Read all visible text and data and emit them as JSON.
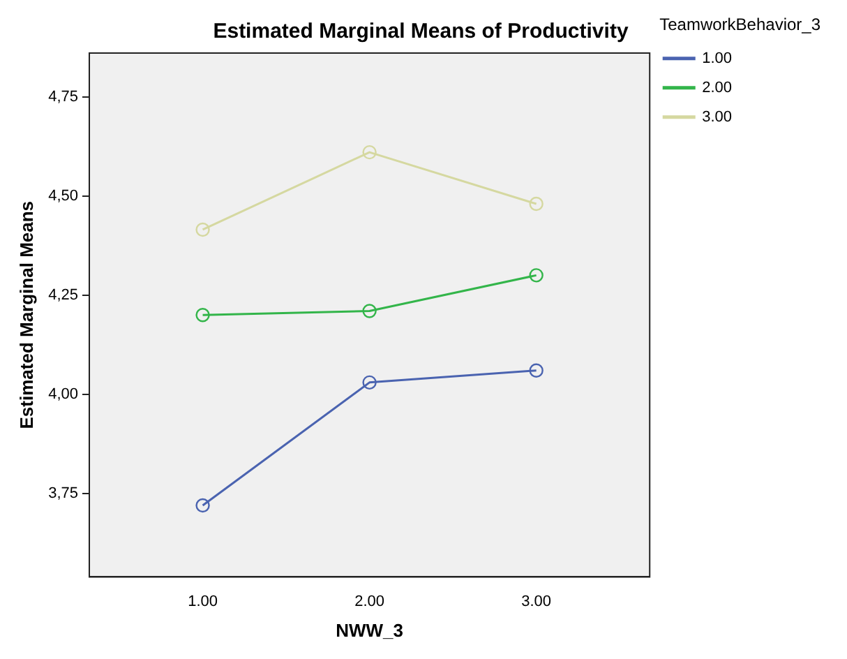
{
  "chart_data": {
    "type": "line",
    "title": "Estimated Marginal Means of Productivity",
    "xlabel": "NWW_3",
    "ylabel": "Estimated Marginal Means",
    "legend_title": "TeamworkBehavior_3",
    "x": [
      1,
      2,
      3
    ],
    "xlim": [
      0.32,
      3.68
    ],
    "xticks": [
      {
        "value": 1,
        "label": "1.00"
      },
      {
        "value": 2,
        "label": "2.00"
      },
      {
        "value": 3,
        "label": "3.00"
      }
    ],
    "ylim": [
      3.54,
      4.86
    ],
    "yticks": [
      {
        "value": 3.75,
        "label": "3,75"
      },
      {
        "value": 4,
        "label": "4,00"
      },
      {
        "value": 4.25,
        "label": "4,25"
      },
      {
        "value": 4.5,
        "label": "4,50"
      },
      {
        "value": 4.75,
        "label": "4,75"
      }
    ],
    "series": [
      {
        "name": "1.00",
        "color": "#4a63b0",
        "values": [
          3.72,
          4.03,
          4.06
        ]
      },
      {
        "name": "2.00",
        "color": "#33b54a",
        "values": [
          4.2,
          4.21,
          4.3
        ]
      },
      {
        "name": "3.00",
        "color": "#d5d8a0",
        "values": [
          4.415,
          4.61,
          4.48
        ]
      }
    ],
    "grid": false,
    "legend": "top right",
    "marker": "circle",
    "line_style": "solid"
  }
}
